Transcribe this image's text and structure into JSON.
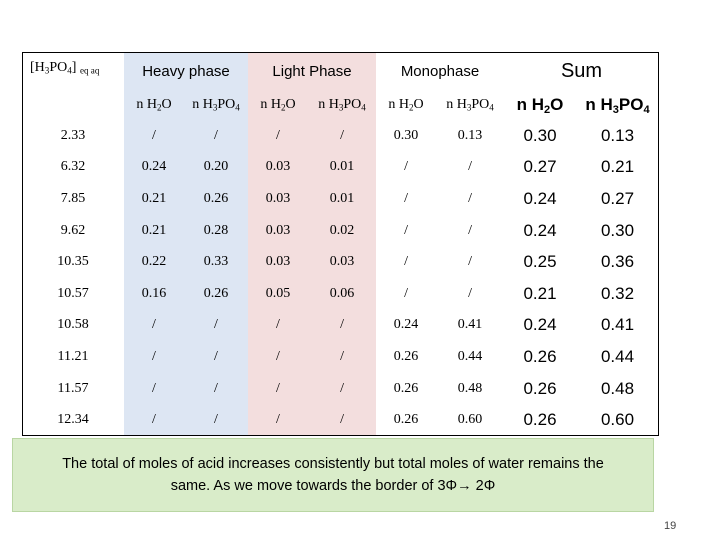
{
  "table": {
    "corner_label_prefix": "[H",
    "corner_label_sub1": "3",
    "corner_label_mid": "PO",
    "corner_label_sub2": "4",
    "corner_label_suffix": "]",
    "corner_label_sub3": "eq aq",
    "group_headers": [
      "Heavy phase",
      "Light Phase",
      "Monophase",
      "Sum"
    ],
    "sub_headers": {
      "water_prefix": "n H",
      "water_sub": "2",
      "water_suffix": "O",
      "acid_prefix": "n H",
      "acid_sub": "3",
      "acid_mid": "PO",
      "acid_sub2": "4"
    },
    "rows": [
      {
        "label": "2.33",
        "values": [
          "/",
          "/",
          "/",
          "/",
          "0.30",
          "0.13",
          "0.30",
          "0.13"
        ]
      },
      {
        "label": "6.32",
        "values": [
          "0.24",
          "0.20",
          "0.03",
          "0.01",
          "/",
          "/",
          "0.27",
          "0.21"
        ]
      },
      {
        "label": "7.85",
        "values": [
          "0.21",
          "0.26",
          "0.03",
          "0.01",
          "/",
          "/",
          "0.24",
          "0.27"
        ]
      },
      {
        "label": "9.62",
        "values": [
          "0.21",
          "0.28",
          "0.03",
          "0.02",
          "/",
          "/",
          "0.24",
          "0.30"
        ]
      },
      {
        "label": "10.35",
        "values": [
          "0.22",
          "0.33",
          "0.03",
          "0.03",
          "/",
          "/",
          "0.25",
          "0.36"
        ]
      },
      {
        "label": "10.57",
        "values": [
          "0.16",
          "0.26",
          "0.05",
          "0.06",
          "/",
          "/",
          "0.21",
          "0.32"
        ]
      },
      {
        "label": "10.58",
        "values": [
          "/",
          "/",
          "/",
          "/",
          "0.24",
          "0.41",
          "0.24",
          "0.41"
        ]
      },
      {
        "label": "11.21",
        "values": [
          "/",
          "/",
          "/",
          "/",
          "0.26",
          "0.44",
          "0.26",
          "0.44"
        ]
      },
      {
        "label": "11.57",
        "values": [
          "/",
          "/",
          "/",
          "/",
          "0.26",
          "0.48",
          "0.26",
          "0.48"
        ]
      },
      {
        "label": "12.34",
        "values": [
          "/",
          "/",
          "/",
          "/",
          "0.26",
          "0.60",
          "0.26",
          "0.60"
        ]
      }
    ]
  },
  "note": {
    "line1": "The total of moles of acid  increases consistently but total moles of water remains the",
    "line2": "same. As we move towards the border of 3Φ→ 2Φ"
  },
  "colors": {
    "heavy_bg": "#dde6f3",
    "light_bg": "#f3dede",
    "note_bg": "#d9ecc9"
  },
  "page_number": "19"
}
